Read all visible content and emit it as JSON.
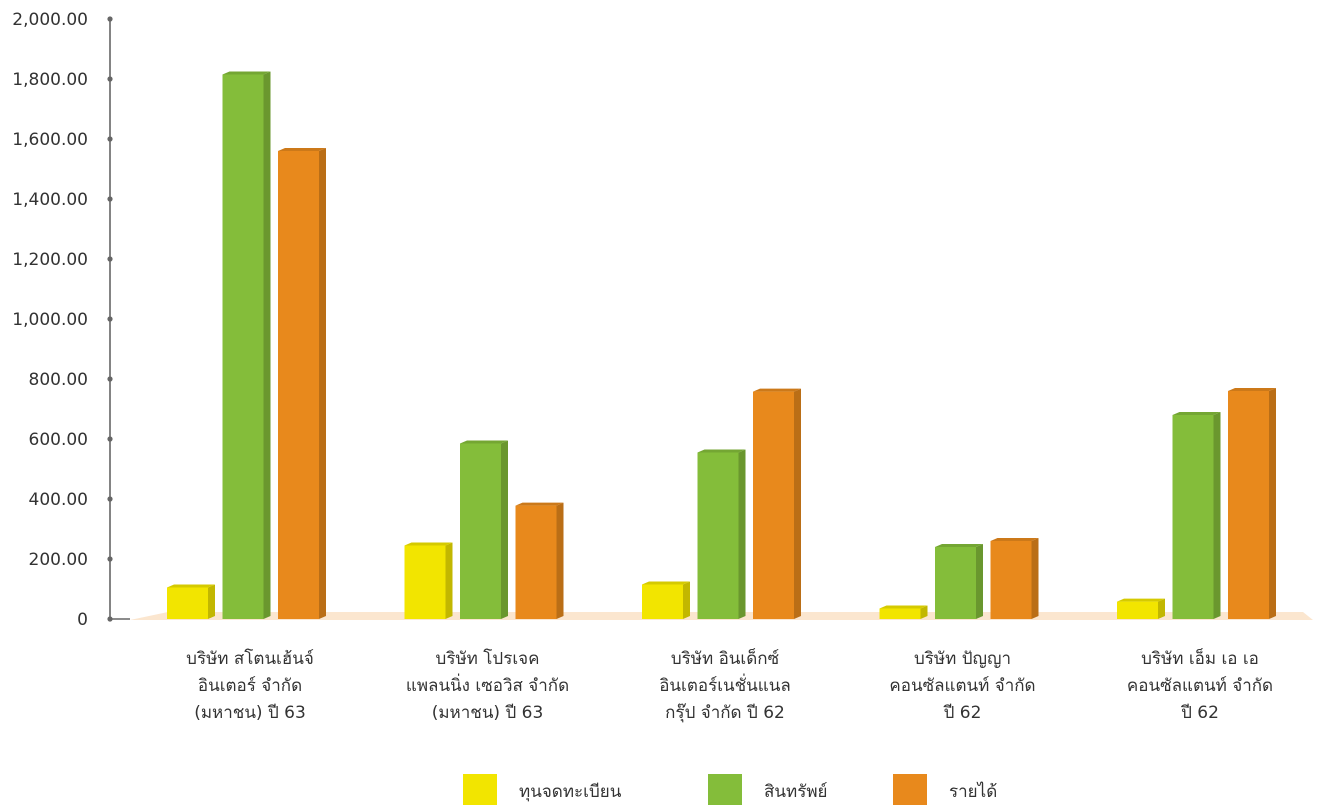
{
  "chart_data": {
    "type": "bar",
    "title": "",
    "xlabel": "",
    "ylabel": "",
    "ylim": [
      0,
      2000
    ],
    "y_ticks": [
      0,
      200,
      400,
      600,
      800,
      1000,
      1200,
      1400,
      1600,
      1800,
      2000
    ],
    "y_tick_labels": [
      "0",
      "200.00",
      "400.00",
      "600.00",
      "800.00",
      "1,000.00",
      "1,200.00",
      "1,400.00",
      "1,600.00",
      "1,800.00",
      "2,000.00"
    ],
    "grid": false,
    "style": "3d-columns",
    "legend_position": "bottom",
    "categories": [
      [
        "บริษัท สโตนเฮ้นจ์",
        "อินเตอร์ จำกัด",
        "(มหาชน) ปี 63"
      ],
      [
        "บริษัท โปรเจค",
        "แพลนนิ่ง เซอวิส จำกัด",
        "(มหาชน) ปี 63"
      ],
      [
        "บริษัท อินเด็กซ์",
        "อินเตอร์เนชั่นแนล",
        "กรุ๊ป จำกัด ปี 62"
      ],
      [
        "บริษัท ปัญญา",
        "คอนซัลแตนท์ จำกัด",
        "ปี 62"
      ],
      [
        "บริษัท เอ็ม เอ เอ",
        "คอนซัลแตนท์ จำกัด",
        "ปี 62"
      ]
    ],
    "series": [
      {
        "name": "ทุนจดทะเบียน",
        "color": "#f2e500",
        "values": [
          105,
          245,
          115,
          35,
          58
        ]
      },
      {
        "name": "สินทรัพย์",
        "color": "#84bd3a",
        "values": [
          1815,
          585,
          555,
          240,
          680
        ]
      },
      {
        "name": "รายได้",
        "color": "#e8891c",
        "values": [
          1560,
          378,
          758,
          260,
          760
        ]
      }
    ],
    "floor_color": "#fbe6cf",
    "axis_color": "#666666"
  }
}
